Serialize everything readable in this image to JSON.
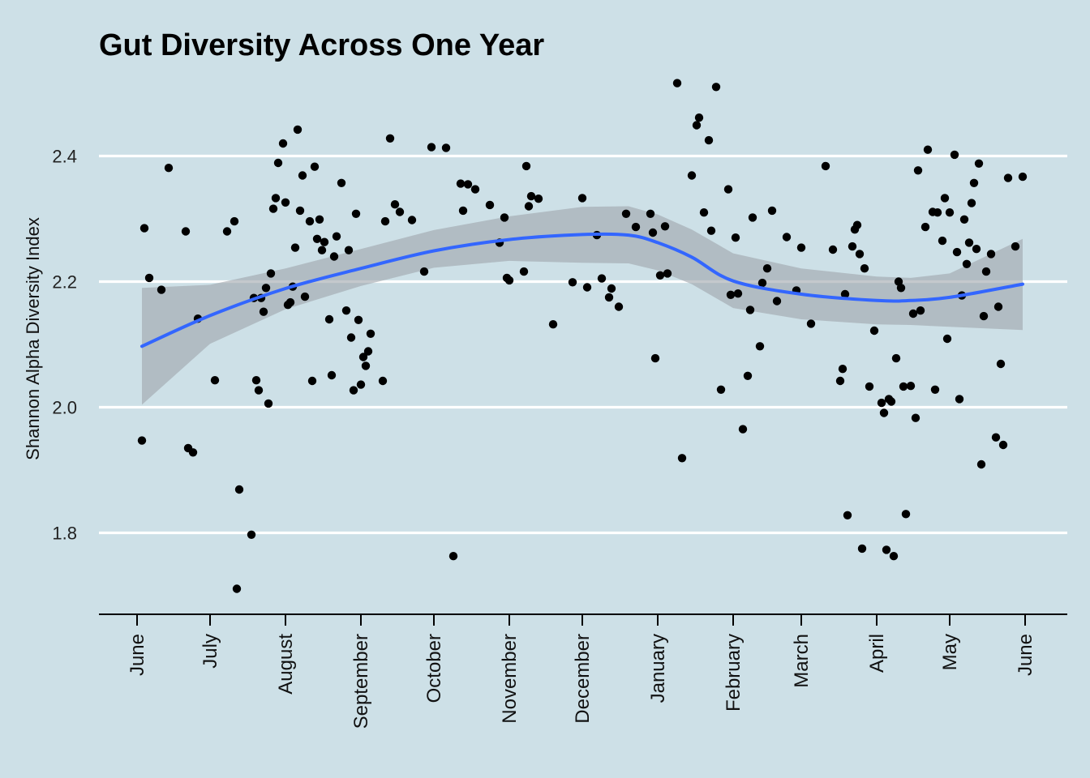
{
  "chart_data": {
    "type": "scatter",
    "title": "Gut Diversity Across One Year",
    "xlabel": "",
    "ylabel": "Shannon Alpha Diversity Index",
    "x_axis_type": "date",
    "x_tick_labels": [
      "June",
      "July",
      "August",
      "September",
      "October",
      "November",
      "December",
      "January",
      "February",
      "March",
      "April",
      "May",
      "June"
    ],
    "x_tick_dates": [
      "2018-06-01",
      "2018-07-01",
      "2018-08-01",
      "2018-09-01",
      "2018-10-01",
      "2018-11-01",
      "2018-12-01",
      "2019-01-01",
      "2019-02-01",
      "2019-03-01",
      "2019-04-01",
      "2019-05-01",
      "2019-06-01"
    ],
    "y_ticks": [
      1.8,
      2.0,
      2.2,
      2.4
    ],
    "ylim": [
      1.67,
      2.55
    ],
    "grid": "horizontal major lines only",
    "colors": {
      "background": "#cde0e7",
      "points": "#000000",
      "smooth_line": "#3366ff",
      "confidence_band": "#a9b2b8",
      "grid": "#ffffff"
    },
    "points": [
      {
        "date": "2018-06-03",
        "y": 1.947
      },
      {
        "date": "2018-06-04",
        "y": 2.285
      },
      {
        "date": "2018-06-06",
        "y": 2.206
      },
      {
        "date": "2018-06-11",
        "y": 2.187
      },
      {
        "date": "2018-06-14",
        "y": 2.381
      },
      {
        "date": "2018-06-21",
        "y": 2.28
      },
      {
        "date": "2018-06-22",
        "y": 1.935
      },
      {
        "date": "2018-06-24",
        "y": 1.928
      },
      {
        "date": "2018-06-26",
        "y": 2.141
      },
      {
        "date": "2018-07-03",
        "y": 2.043
      },
      {
        "date": "2018-07-08",
        "y": 2.28
      },
      {
        "date": "2018-07-11",
        "y": 2.296
      },
      {
        "date": "2018-07-12",
        "y": 1.711
      },
      {
        "date": "2018-07-13",
        "y": 1.869
      },
      {
        "date": "2018-07-18",
        "y": 1.797
      },
      {
        "date": "2018-07-19",
        "y": 2.174
      },
      {
        "date": "2018-07-20",
        "y": 2.043
      },
      {
        "date": "2018-07-21",
        "y": 2.027
      },
      {
        "date": "2018-07-22",
        "y": 2.174
      },
      {
        "date": "2018-07-23",
        "y": 2.152
      },
      {
        "date": "2018-07-24",
        "y": 2.19
      },
      {
        "date": "2018-07-25",
        "y": 2.006
      },
      {
        "date": "2018-07-26",
        "y": 2.213
      },
      {
        "date": "2018-07-27",
        "y": 2.316
      },
      {
        "date": "2018-07-28",
        "y": 2.333
      },
      {
        "date": "2018-07-29",
        "y": 2.389
      },
      {
        "date": "2018-07-31",
        "y": 2.42
      },
      {
        "date": "2018-08-01",
        "y": 2.326
      },
      {
        "date": "2018-08-02",
        "y": 2.163
      },
      {
        "date": "2018-08-03",
        "y": 2.167
      },
      {
        "date": "2018-08-04",
        "y": 2.192
      },
      {
        "date": "2018-08-05",
        "y": 2.254
      },
      {
        "date": "2018-08-06",
        "y": 2.442
      },
      {
        "date": "2018-08-07",
        "y": 2.313
      },
      {
        "date": "2018-08-08",
        "y": 2.369
      },
      {
        "date": "2018-08-09",
        "y": 2.176
      },
      {
        "date": "2018-08-11",
        "y": 2.296
      },
      {
        "date": "2018-08-12",
        "y": 2.042
      },
      {
        "date": "2018-08-13",
        "y": 2.383
      },
      {
        "date": "2018-08-14",
        "y": 2.268
      },
      {
        "date": "2018-08-15",
        "y": 2.299
      },
      {
        "date": "2018-08-16",
        "y": 2.25
      },
      {
        "date": "2018-08-17",
        "y": 2.263
      },
      {
        "date": "2018-08-19",
        "y": 2.14
      },
      {
        "date": "2018-08-20",
        "y": 2.051
      },
      {
        "date": "2018-08-21",
        "y": 2.24
      },
      {
        "date": "2018-08-22",
        "y": 2.272
      },
      {
        "date": "2018-08-24",
        "y": 2.357
      },
      {
        "date": "2018-08-26",
        "y": 2.154
      },
      {
        "date": "2018-08-27",
        "y": 2.25
      },
      {
        "date": "2018-08-28",
        "y": 2.111
      },
      {
        "date": "2018-08-29",
        "y": 2.027
      },
      {
        "date": "2018-08-30",
        "y": 2.308
      },
      {
        "date": "2018-08-31",
        "y": 2.139
      },
      {
        "date": "2018-09-01",
        "y": 2.036
      },
      {
        "date": "2018-09-02",
        "y": 2.08
      },
      {
        "date": "2018-09-03",
        "y": 2.066
      },
      {
        "date": "2018-09-04",
        "y": 2.089
      },
      {
        "date": "2018-09-05",
        "y": 2.117
      },
      {
        "date": "2018-09-10",
        "y": 2.042
      },
      {
        "date": "2018-09-11",
        "y": 2.296
      },
      {
        "date": "2018-09-13",
        "y": 2.428
      },
      {
        "date": "2018-09-15",
        "y": 2.323
      },
      {
        "date": "2018-09-17",
        "y": 2.311
      },
      {
        "date": "2018-09-22",
        "y": 2.298
      },
      {
        "date": "2018-09-27",
        "y": 2.216
      },
      {
        "date": "2018-09-30",
        "y": 2.414
      },
      {
        "date": "2018-10-06",
        "y": 2.413
      },
      {
        "date": "2018-10-09",
        "y": 1.763
      },
      {
        "date": "2018-10-12",
        "y": 2.356
      },
      {
        "date": "2018-10-13",
        "y": 2.313
      },
      {
        "date": "2018-10-15",
        "y": 2.355
      },
      {
        "date": "2018-10-18",
        "y": 2.347
      },
      {
        "date": "2018-10-24",
        "y": 2.322
      },
      {
        "date": "2018-10-28",
        "y": 2.262
      },
      {
        "date": "2018-10-30",
        "y": 2.302
      },
      {
        "date": "2018-10-31",
        "y": 2.206
      },
      {
        "date": "2018-11-01",
        "y": 2.202
      },
      {
        "date": "2018-11-07",
        "y": 2.216
      },
      {
        "date": "2018-11-08",
        "y": 2.384
      },
      {
        "date": "2018-11-09",
        "y": 2.32
      },
      {
        "date": "2018-11-10",
        "y": 2.336
      },
      {
        "date": "2018-11-13",
        "y": 2.332
      },
      {
        "date": "2018-11-19",
        "y": 2.132
      },
      {
        "date": "2018-11-27",
        "y": 2.199
      },
      {
        "date": "2018-12-01",
        "y": 2.333
      },
      {
        "date": "2018-12-03",
        "y": 2.191
      },
      {
        "date": "2018-12-07",
        "y": 2.274
      },
      {
        "date": "2018-12-09",
        "y": 2.205
      },
      {
        "date": "2018-12-12",
        "y": 2.175
      },
      {
        "date": "2018-12-13",
        "y": 2.189
      },
      {
        "date": "2018-12-16",
        "y": 2.16
      },
      {
        "date": "2018-12-19",
        "y": 2.308
      },
      {
        "date": "2018-12-23",
        "y": 2.287
      },
      {
        "date": "2018-12-29",
        "y": 2.308
      },
      {
        "date": "2018-12-30",
        "y": 2.278
      },
      {
        "date": "2018-12-31",
        "y": 2.078
      },
      {
        "date": "2019-01-02",
        "y": 2.21
      },
      {
        "date": "2019-01-04",
        "y": 2.288
      },
      {
        "date": "2019-01-05",
        "y": 2.213
      },
      {
        "date": "2019-01-09",
        "y": 2.516
      },
      {
        "date": "2019-01-11",
        "y": 1.919
      },
      {
        "date": "2019-01-15",
        "y": 2.369
      },
      {
        "date": "2019-01-17",
        "y": 2.449
      },
      {
        "date": "2019-01-18",
        "y": 2.461
      },
      {
        "date": "2019-01-20",
        "y": 2.31
      },
      {
        "date": "2019-01-22",
        "y": 2.425
      },
      {
        "date": "2019-01-23",
        "y": 2.281
      },
      {
        "date": "2019-01-25",
        "y": 2.51
      },
      {
        "date": "2019-01-27",
        "y": 2.028
      },
      {
        "date": "2019-01-30",
        "y": 2.347
      },
      {
        "date": "2019-01-31",
        "y": 2.179
      },
      {
        "date": "2019-02-02",
        "y": 2.27
      },
      {
        "date": "2019-02-03",
        "y": 2.181
      },
      {
        "date": "2019-02-05",
        "y": 1.965
      },
      {
        "date": "2019-02-07",
        "y": 2.05
      },
      {
        "date": "2019-02-08",
        "y": 2.155
      },
      {
        "date": "2019-02-09",
        "y": 2.302
      },
      {
        "date": "2019-02-12",
        "y": 2.097
      },
      {
        "date": "2019-02-13",
        "y": 2.198
      },
      {
        "date": "2019-02-15",
        "y": 2.221
      },
      {
        "date": "2019-02-17",
        "y": 2.313
      },
      {
        "date": "2019-02-19",
        "y": 2.169
      },
      {
        "date": "2019-02-23",
        "y": 2.271
      },
      {
        "date": "2019-02-27",
        "y": 2.186
      },
      {
        "date": "2019-03-01",
        "y": 2.254
      },
      {
        "date": "2019-03-05",
        "y": 2.133
      },
      {
        "date": "2019-03-11",
        "y": 2.384
      },
      {
        "date": "2019-03-14",
        "y": 2.251
      },
      {
        "date": "2019-03-17",
        "y": 2.042
      },
      {
        "date": "2019-03-18",
        "y": 2.061
      },
      {
        "date": "2019-03-19",
        "y": 2.18
      },
      {
        "date": "2019-03-20",
        "y": 1.828
      },
      {
        "date": "2019-03-22",
        "y": 2.256
      },
      {
        "date": "2019-03-23",
        "y": 2.283
      },
      {
        "date": "2019-03-24",
        "y": 2.29
      },
      {
        "date": "2019-03-25",
        "y": 2.244
      },
      {
        "date": "2019-03-26",
        "y": 1.775
      },
      {
        "date": "2019-03-27",
        "y": 2.221
      },
      {
        "date": "2019-03-29",
        "y": 2.033
      },
      {
        "date": "2019-03-31",
        "y": 2.122
      },
      {
        "date": "2019-04-03",
        "y": 2.007
      },
      {
        "date": "2019-04-04",
        "y": 1.991
      },
      {
        "date": "2019-04-05",
        "y": 1.773
      },
      {
        "date": "2019-04-06",
        "y": 2.013
      },
      {
        "date": "2019-04-07",
        "y": 2.009
      },
      {
        "date": "2019-04-08",
        "y": 1.763
      },
      {
        "date": "2019-04-09",
        "y": 2.078
      },
      {
        "date": "2019-04-10",
        "y": 2.2
      },
      {
        "date": "2019-04-11",
        "y": 2.19
      },
      {
        "date": "2019-04-12",
        "y": 2.033
      },
      {
        "date": "2019-04-13",
        "y": 1.83
      },
      {
        "date": "2019-04-15",
        "y": 2.034
      },
      {
        "date": "2019-04-16",
        "y": 2.149
      },
      {
        "date": "2019-04-17",
        "y": 1.983
      },
      {
        "date": "2019-04-18",
        "y": 2.377
      },
      {
        "date": "2019-04-19",
        "y": 2.154
      },
      {
        "date": "2019-04-21",
        "y": 2.287
      },
      {
        "date": "2019-04-22",
        "y": 2.41
      },
      {
        "date": "2019-04-24",
        "y": 2.311
      },
      {
        "date": "2019-04-25",
        "y": 2.028
      },
      {
        "date": "2019-04-26",
        "y": 2.31
      },
      {
        "date": "2019-04-28",
        "y": 2.265
      },
      {
        "date": "2019-04-29",
        "y": 2.333
      },
      {
        "date": "2019-04-30",
        "y": 2.109
      },
      {
        "date": "2019-05-01",
        "y": 2.31
      },
      {
        "date": "2019-05-03",
        "y": 2.402
      },
      {
        "date": "2019-05-04",
        "y": 2.247
      },
      {
        "date": "2019-05-05",
        "y": 2.013
      },
      {
        "date": "2019-05-06",
        "y": 2.178
      },
      {
        "date": "2019-05-07",
        "y": 2.299
      },
      {
        "date": "2019-05-08",
        "y": 2.228
      },
      {
        "date": "2019-05-09",
        "y": 2.262
      },
      {
        "date": "2019-05-10",
        "y": 2.325
      },
      {
        "date": "2019-05-11",
        "y": 2.357
      },
      {
        "date": "2019-05-12",
        "y": 2.252
      },
      {
        "date": "2019-05-13",
        "y": 2.388
      },
      {
        "date": "2019-05-14",
        "y": 1.909
      },
      {
        "date": "2019-05-15",
        "y": 2.145
      },
      {
        "date": "2019-05-16",
        "y": 2.216
      },
      {
        "date": "2019-05-18",
        "y": 2.244
      },
      {
        "date": "2019-05-20",
        "y": 1.952
      },
      {
        "date": "2019-05-21",
        "y": 2.16
      },
      {
        "date": "2019-05-22",
        "y": 2.069
      },
      {
        "date": "2019-05-23",
        "y": 1.94
      },
      {
        "date": "2019-05-25",
        "y": 2.365
      },
      {
        "date": "2019-05-28",
        "y": 2.256
      },
      {
        "date": "2019-05-31",
        "y": 2.367
      }
    ],
    "smooth": {
      "x": [
        "2018-06-03",
        "2018-07-01",
        "2018-08-01",
        "2018-09-01",
        "2018-10-01",
        "2018-11-01",
        "2018-12-01",
        "2018-12-20",
        "2019-01-01",
        "2019-01-15",
        "2019-02-01",
        "2019-03-01",
        "2019-04-01",
        "2019-04-15",
        "2019-05-01",
        "2019-05-31"
      ],
      "y": [
        2.097,
        2.146,
        2.189,
        2.221,
        2.249,
        2.267,
        2.275,
        2.274,
        2.262,
        2.239,
        2.201,
        2.18,
        2.17,
        2.17,
        2.175,
        2.196
      ],
      "upper": [
        2.19,
        2.195,
        2.221,
        2.252,
        2.282,
        2.304,
        2.319,
        2.32,
        2.307,
        2.283,
        2.245,
        2.221,
        2.208,
        2.206,
        2.213,
        2.268
      ],
      "lower": [
        2.004,
        2.101,
        2.156,
        2.193,
        2.222,
        2.233,
        2.23,
        2.229,
        2.218,
        2.196,
        2.158,
        2.14,
        2.132,
        2.131,
        2.128,
        2.123
      ]
    }
  }
}
